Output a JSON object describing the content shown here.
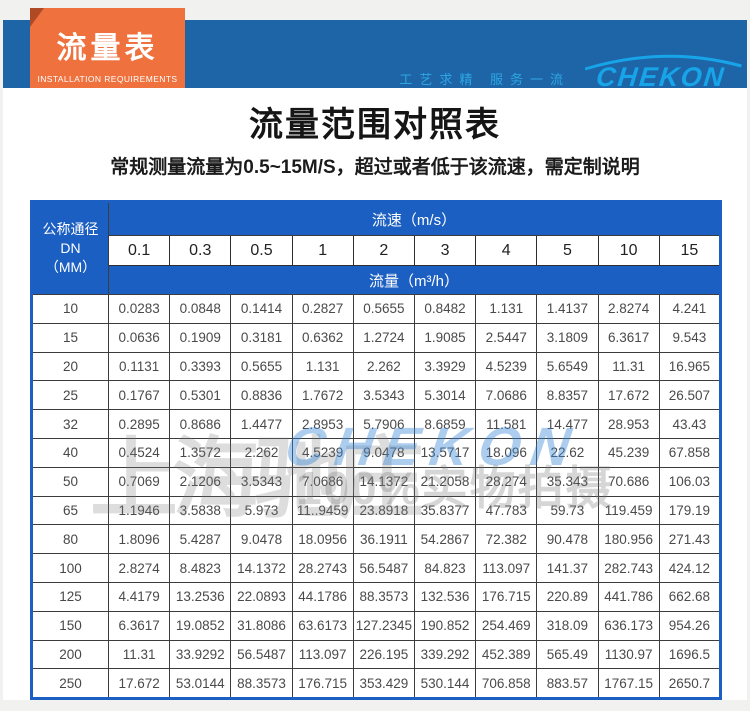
{
  "banner": {
    "ribbon_title": "流量表",
    "ribbon_subtitle": "INSTALLATION REQUIREMENTS",
    "slogan": "工艺求精  服务一流",
    "brand": "CHEKON",
    "colors": {
      "bar_blue": "#1e65a8",
      "ribbon_orange": "#ee713e",
      "ribbon_fold": "#b04a24",
      "brand_cyan": "#17a4e8"
    }
  },
  "page": {
    "title": "流量范围对照表",
    "subtitle": "常规测量流量为0.5~15M/S，超过或者低于该流速，需定制说明"
  },
  "watermark": {
    "company": "上海驰庄",
    "brand": "CHEKON",
    "tagline": "100%实物拍摄"
  },
  "chart_data": {
    "type": "table",
    "title": "流量范围对照表",
    "corner_header_line1": "公称通径DN",
    "corner_header_line2": "（MM）",
    "speed_header": "流速（m/s）",
    "flow_header": "流量（m³/h）",
    "speed_values": [
      "0.1",
      "0.3",
      "0.5",
      "1",
      "2",
      "3",
      "4",
      "5",
      "10",
      "15"
    ],
    "accent_blue": "#1c5fc2",
    "rows": [
      {
        "dn": "10",
        "values": [
          "0.0283",
          "0.0848",
          "0.1414",
          "0.2827",
          "0.5655",
          "0.8482",
          "1.131",
          "1.4137",
          "2.8274",
          "4.241"
        ]
      },
      {
        "dn": "15",
        "values": [
          "0.0636",
          "0.1909",
          "0.3181",
          "0.6362",
          "1.2724",
          "1.9085",
          "2.5447",
          "3.1809",
          "6.3617",
          "9.543"
        ]
      },
      {
        "dn": "20",
        "values": [
          "0.1131",
          "0.3393",
          "0.5655",
          "1.131",
          "2.262",
          "3.3929",
          "4.5239",
          "5.6549",
          "11.31",
          "16.965"
        ]
      },
      {
        "dn": "25",
        "values": [
          "0.1767",
          "0.5301",
          "0.8836",
          "1.7672",
          "3.5343",
          "5.3014",
          "7.0686",
          "8.8357",
          "17.672",
          "26.507"
        ]
      },
      {
        "dn": "32",
        "values": [
          "0.2895",
          "0.8686",
          "1.4477",
          "2.8953",
          "5.7906",
          "8.6859",
          "11.581",
          "14.477",
          "28.953",
          "43.43"
        ]
      },
      {
        "dn": "40",
        "values": [
          "0.4524",
          "1.3572",
          "2.262",
          "4.5239",
          "9.0478",
          "13.5717",
          "18.096",
          "22.62",
          "45.239",
          "67.858"
        ]
      },
      {
        "dn": "50",
        "values": [
          "0.7069",
          "2.1206",
          "3.5343",
          "7.0686",
          "14.1372",
          "21.2058",
          "28.274",
          "35.343",
          "70.686",
          "106.03"
        ]
      },
      {
        "dn": "65",
        "values": [
          "1.1946",
          "3.5838",
          "5.973",
          "11..9459",
          "23.8918",
          "35.8377",
          "47.783",
          "59.73",
          "119.459",
          "179.19"
        ]
      },
      {
        "dn": "80",
        "values": [
          "1.8096",
          "5.4287",
          "9.0478",
          "18.0956",
          "36.1911",
          "54.2867",
          "72.382",
          "90.478",
          "180.956",
          "271.43"
        ]
      },
      {
        "dn": "100",
        "values": [
          "2.8274",
          "8.4823",
          "14.1372",
          "28.2743",
          "56.5487",
          "84.823",
          "113.097",
          "141.37",
          "282.743",
          "424.12"
        ]
      },
      {
        "dn": "125",
        "values": [
          "4.4179",
          "13.2536",
          "22.0893",
          "44.1786",
          "88.3573",
          "132.536",
          "176.715",
          "220.89",
          "441.786",
          "662.68"
        ]
      },
      {
        "dn": "150",
        "values": [
          "6.3617",
          "19.0852",
          "31.8086",
          "63.6173",
          "127.2345",
          "190.852",
          "254.469",
          "318.09",
          "636.173",
          "954.26"
        ]
      },
      {
        "dn": "200",
        "values": [
          "11.31",
          "33.9292",
          "56.5487",
          "113.097",
          "226.195",
          "339.292",
          "452.389",
          "565.49",
          "1130.97",
          "1696.5"
        ]
      },
      {
        "dn": "250",
        "values": [
          "17.672",
          "53.0144",
          "88.3573",
          "176.715",
          "353.429",
          "530.144",
          "706.858",
          "883.57",
          "1767.15",
          "2650.7"
        ]
      }
    ]
  }
}
